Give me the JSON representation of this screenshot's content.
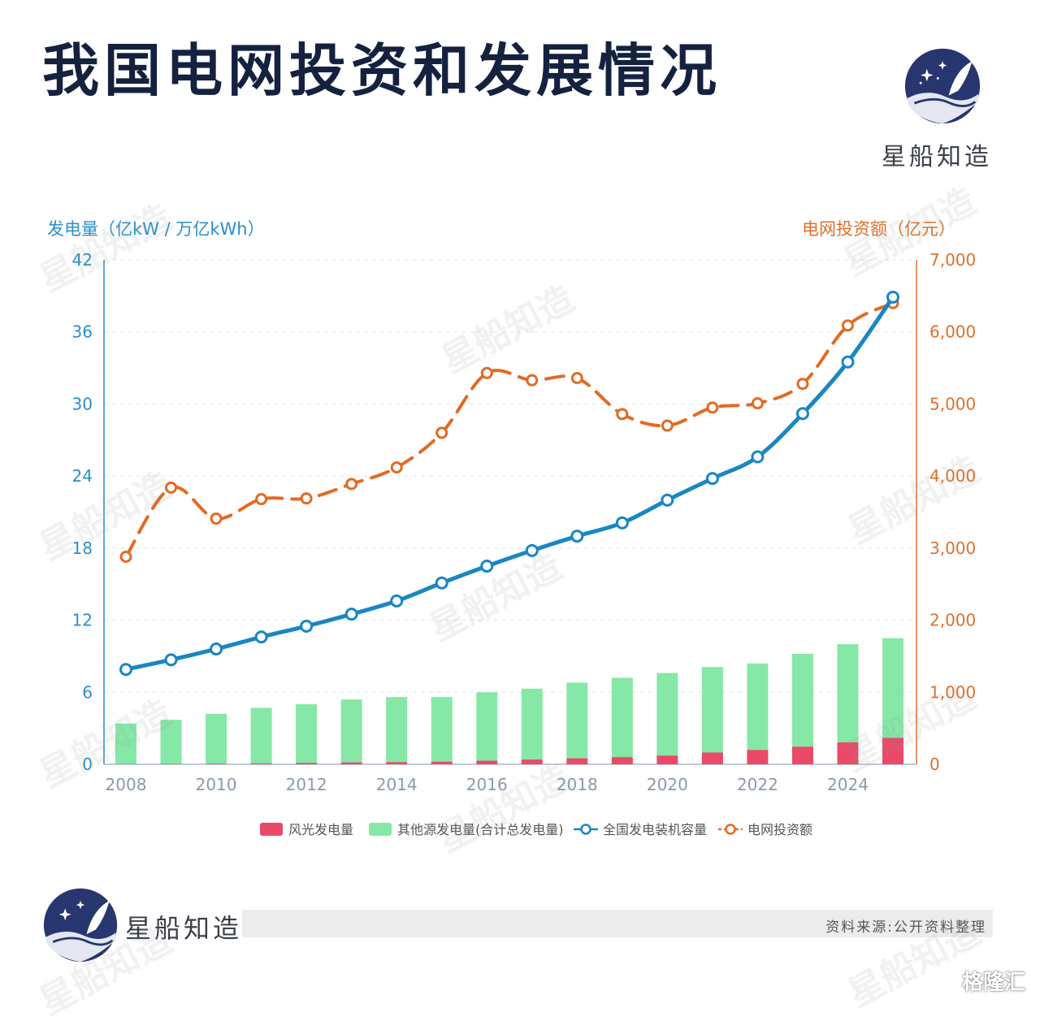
{
  "title": "我国电网投资和发展情况",
  "brand": "星船知造",
  "source": "资料来源:公开资料整理",
  "platform": "格隆汇",
  "watermark": "星船知造",
  "colors": {
    "title": "#14213f",
    "left_axis": "#2a8fc7",
    "right_axis": "#e0702a",
    "capacity_line": "#1a86c2",
    "investment_line": "#e26b23",
    "wind_solar_bar": "#eb4968",
    "other_bar": "#86e8a6"
  },
  "chart_data": {
    "type": "bar+line",
    "left_axis": {
      "title": "发电量（亿kW / 万亿kWh）",
      "ticks": [
        "0",
        "6",
        "12",
        "18",
        "24",
        "30",
        "36",
        "42"
      ],
      "range": [
        0,
        42
      ]
    },
    "right_axis": {
      "title": "电网投资额（亿元）",
      "ticks": [
        "0",
        "1,000",
        "2,000",
        "3,000",
        "4,000",
        "5,000",
        "6,000",
        "7,000"
      ],
      "range": [
        0,
        7000
      ]
    },
    "x_ticks": [
      "2008",
      "2010",
      "2012",
      "2014",
      "2016",
      "2018",
      "2020",
      "2022",
      "2024"
    ],
    "years": [
      2008,
      2009,
      2010,
      2011,
      2012,
      2013,
      2014,
      2015,
      2016,
      2017,
      2018,
      2019,
      2020,
      2021,
      2022,
      2023,
      2024,
      2025
    ],
    "series": [
      {
        "name": "风光发电量",
        "type": "bar",
        "axis": "left",
        "values": [
          0.02,
          0.03,
          0.05,
          0.08,
          0.12,
          0.16,
          0.18,
          0.22,
          0.3,
          0.4,
          0.5,
          0.6,
          0.73,
          0.98,
          1.2,
          1.47,
          1.83,
          2.2
        ]
      },
      {
        "name": "其他源发电量(合计总发电量)",
        "type": "bar",
        "axis": "left",
        "stacked_total": true,
        "values": [
          3.4,
          3.7,
          4.2,
          4.7,
          5.0,
          5.4,
          5.6,
          5.6,
          6.0,
          6.3,
          6.8,
          7.2,
          7.6,
          8.1,
          8.4,
          9.2,
          10.0,
          10.5
        ]
      },
      {
        "name": "全国发电装机容量",
        "type": "line",
        "axis": "left",
        "values": [
          7.9,
          8.7,
          9.6,
          10.6,
          11.5,
          12.5,
          13.6,
          15.1,
          16.5,
          17.8,
          19.0,
          20.1,
          22.0,
          23.8,
          25.6,
          29.2,
          33.5,
          38.9
        ]
      },
      {
        "name": "电网投资额",
        "type": "line",
        "axis": "right",
        "dash": true,
        "values": [
          2880,
          3840,
          3410,
          3680,
          3690,
          3890,
          4120,
          4600,
          5430,
          5330,
          5360,
          4860,
          4700,
          4950,
          5010,
          5280,
          6090,
          6400
        ]
      }
    ],
    "legend_position": "bottom",
    "grid": "horizontal-dashed"
  }
}
